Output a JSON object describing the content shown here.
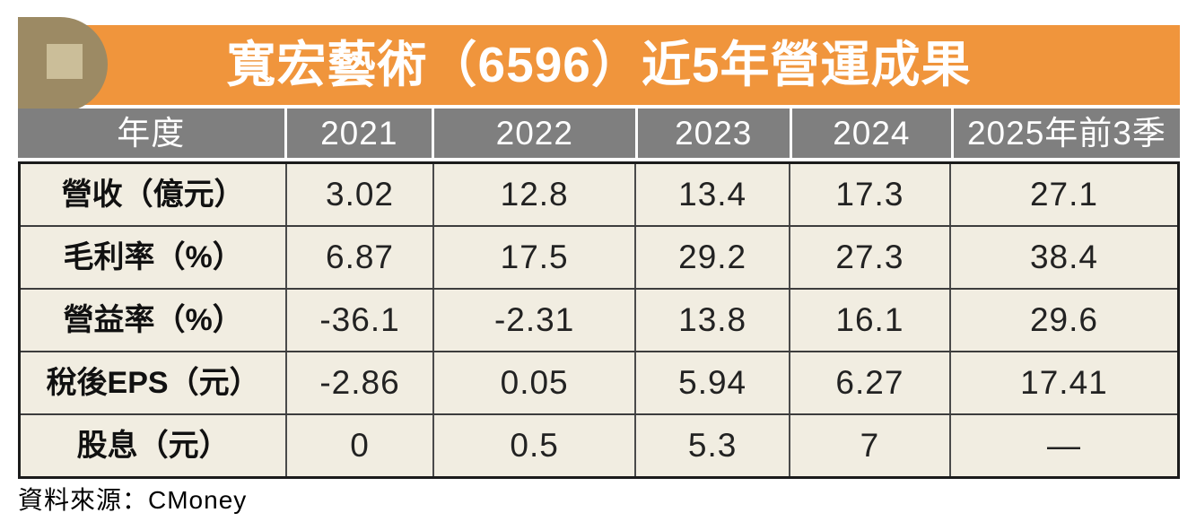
{
  "title": {
    "text": "寬宏藝術（6596）近5年營運成果"
  },
  "footer": {
    "source": "資料來源：CMoney"
  },
  "colors": {
    "banner_orange": "#F0953C",
    "coin_tan": "#9C8A64",
    "coin_square": "#CBBE99",
    "header_gray": "#7F7F7F",
    "cell_cream": "#F1EDE1",
    "border_dark": "#1B1B1B"
  },
  "chart_data": {
    "type": "table",
    "title": "寬宏藝術（6596）近5年營運成果",
    "source": "資料來源：CMoney",
    "columns": [
      "年度",
      "2021",
      "2022",
      "2023",
      "2024",
      "2025年前3季"
    ],
    "rows": [
      {
        "label": "營收（億元）",
        "values": [
          "3.02",
          "12.8",
          "13.4",
          "17.3",
          "27.1"
        ]
      },
      {
        "label": "毛利率（%）",
        "values": [
          "6.87",
          "17.5",
          "29.2",
          "27.3",
          "38.4"
        ]
      },
      {
        "label": "營益率（%）",
        "values": [
          "-36.1",
          "-2.31",
          "13.8",
          "16.1",
          "29.6"
        ]
      },
      {
        "label": "稅後EPS（元）",
        "values": [
          "-2.86",
          "0.05",
          "5.94",
          "6.27",
          "17.41"
        ]
      },
      {
        "label": "股息（元）",
        "values": [
          "0",
          "0.5",
          "5.3",
          "7",
          "—"
        ]
      }
    ]
  }
}
